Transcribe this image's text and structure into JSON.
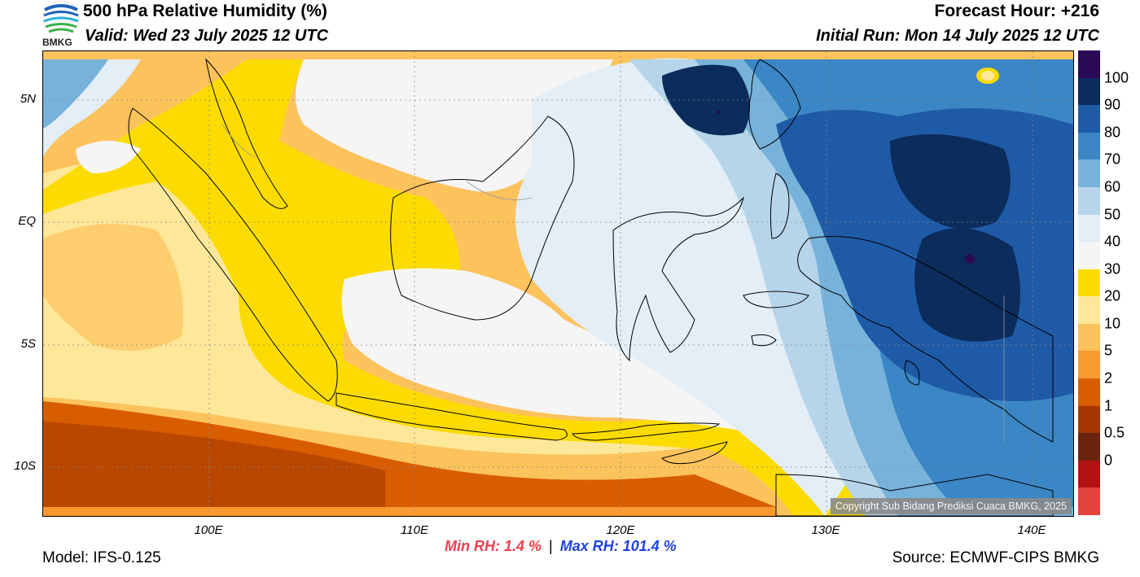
{
  "header": {
    "title": "500 hPa Relative Humidity (%)",
    "valid": "Valid: Wed 23 July 2025 12 UTC",
    "forecast_hour": "Forecast Hour: +216",
    "initial_run": "Initial Run: Mon 14 July 2025 12 UTC"
  },
  "logo": {
    "text": "BMKG",
    "icon": "bmkg-logo-icon"
  },
  "axes": {
    "lat_labels": [
      "5N",
      "EQ",
      "5S",
      "10S"
    ],
    "lon_labels": [
      "100E",
      "110E",
      "120E",
      "130E",
      "140E"
    ]
  },
  "colorbar": {
    "labels": [
      "100",
      "90",
      "80",
      "70",
      "60",
      "50",
      "40",
      "30",
      "20",
      "10",
      "5",
      "2",
      "1",
      "0.5",
      "0"
    ],
    "colors": [
      "#2a0a54",
      "#0c2c5c",
      "#1f5aa6",
      "#3b86c4",
      "#77b2da",
      "#b7d5ea",
      "#e3eef6",
      "#f5f5f5",
      "#fcdc00",
      "#fde89a",
      "#fcc25c",
      "#f99a30",
      "#d85d00",
      "#a33500",
      "#6b2410",
      "#b31212",
      "#e2433d"
    ]
  },
  "stats": {
    "min_rh": "Min RH:   1.4 %",
    "separator": "|",
    "max_rh": "Max RH: 101.4 %"
  },
  "footer": {
    "model": "Model: IFS-0.125",
    "source": "Source: ECMWF-CIPS BMKG",
    "copyright": "Copyright Sub Bidang Prediksi Cuaca BMKG, 2025"
  }
}
